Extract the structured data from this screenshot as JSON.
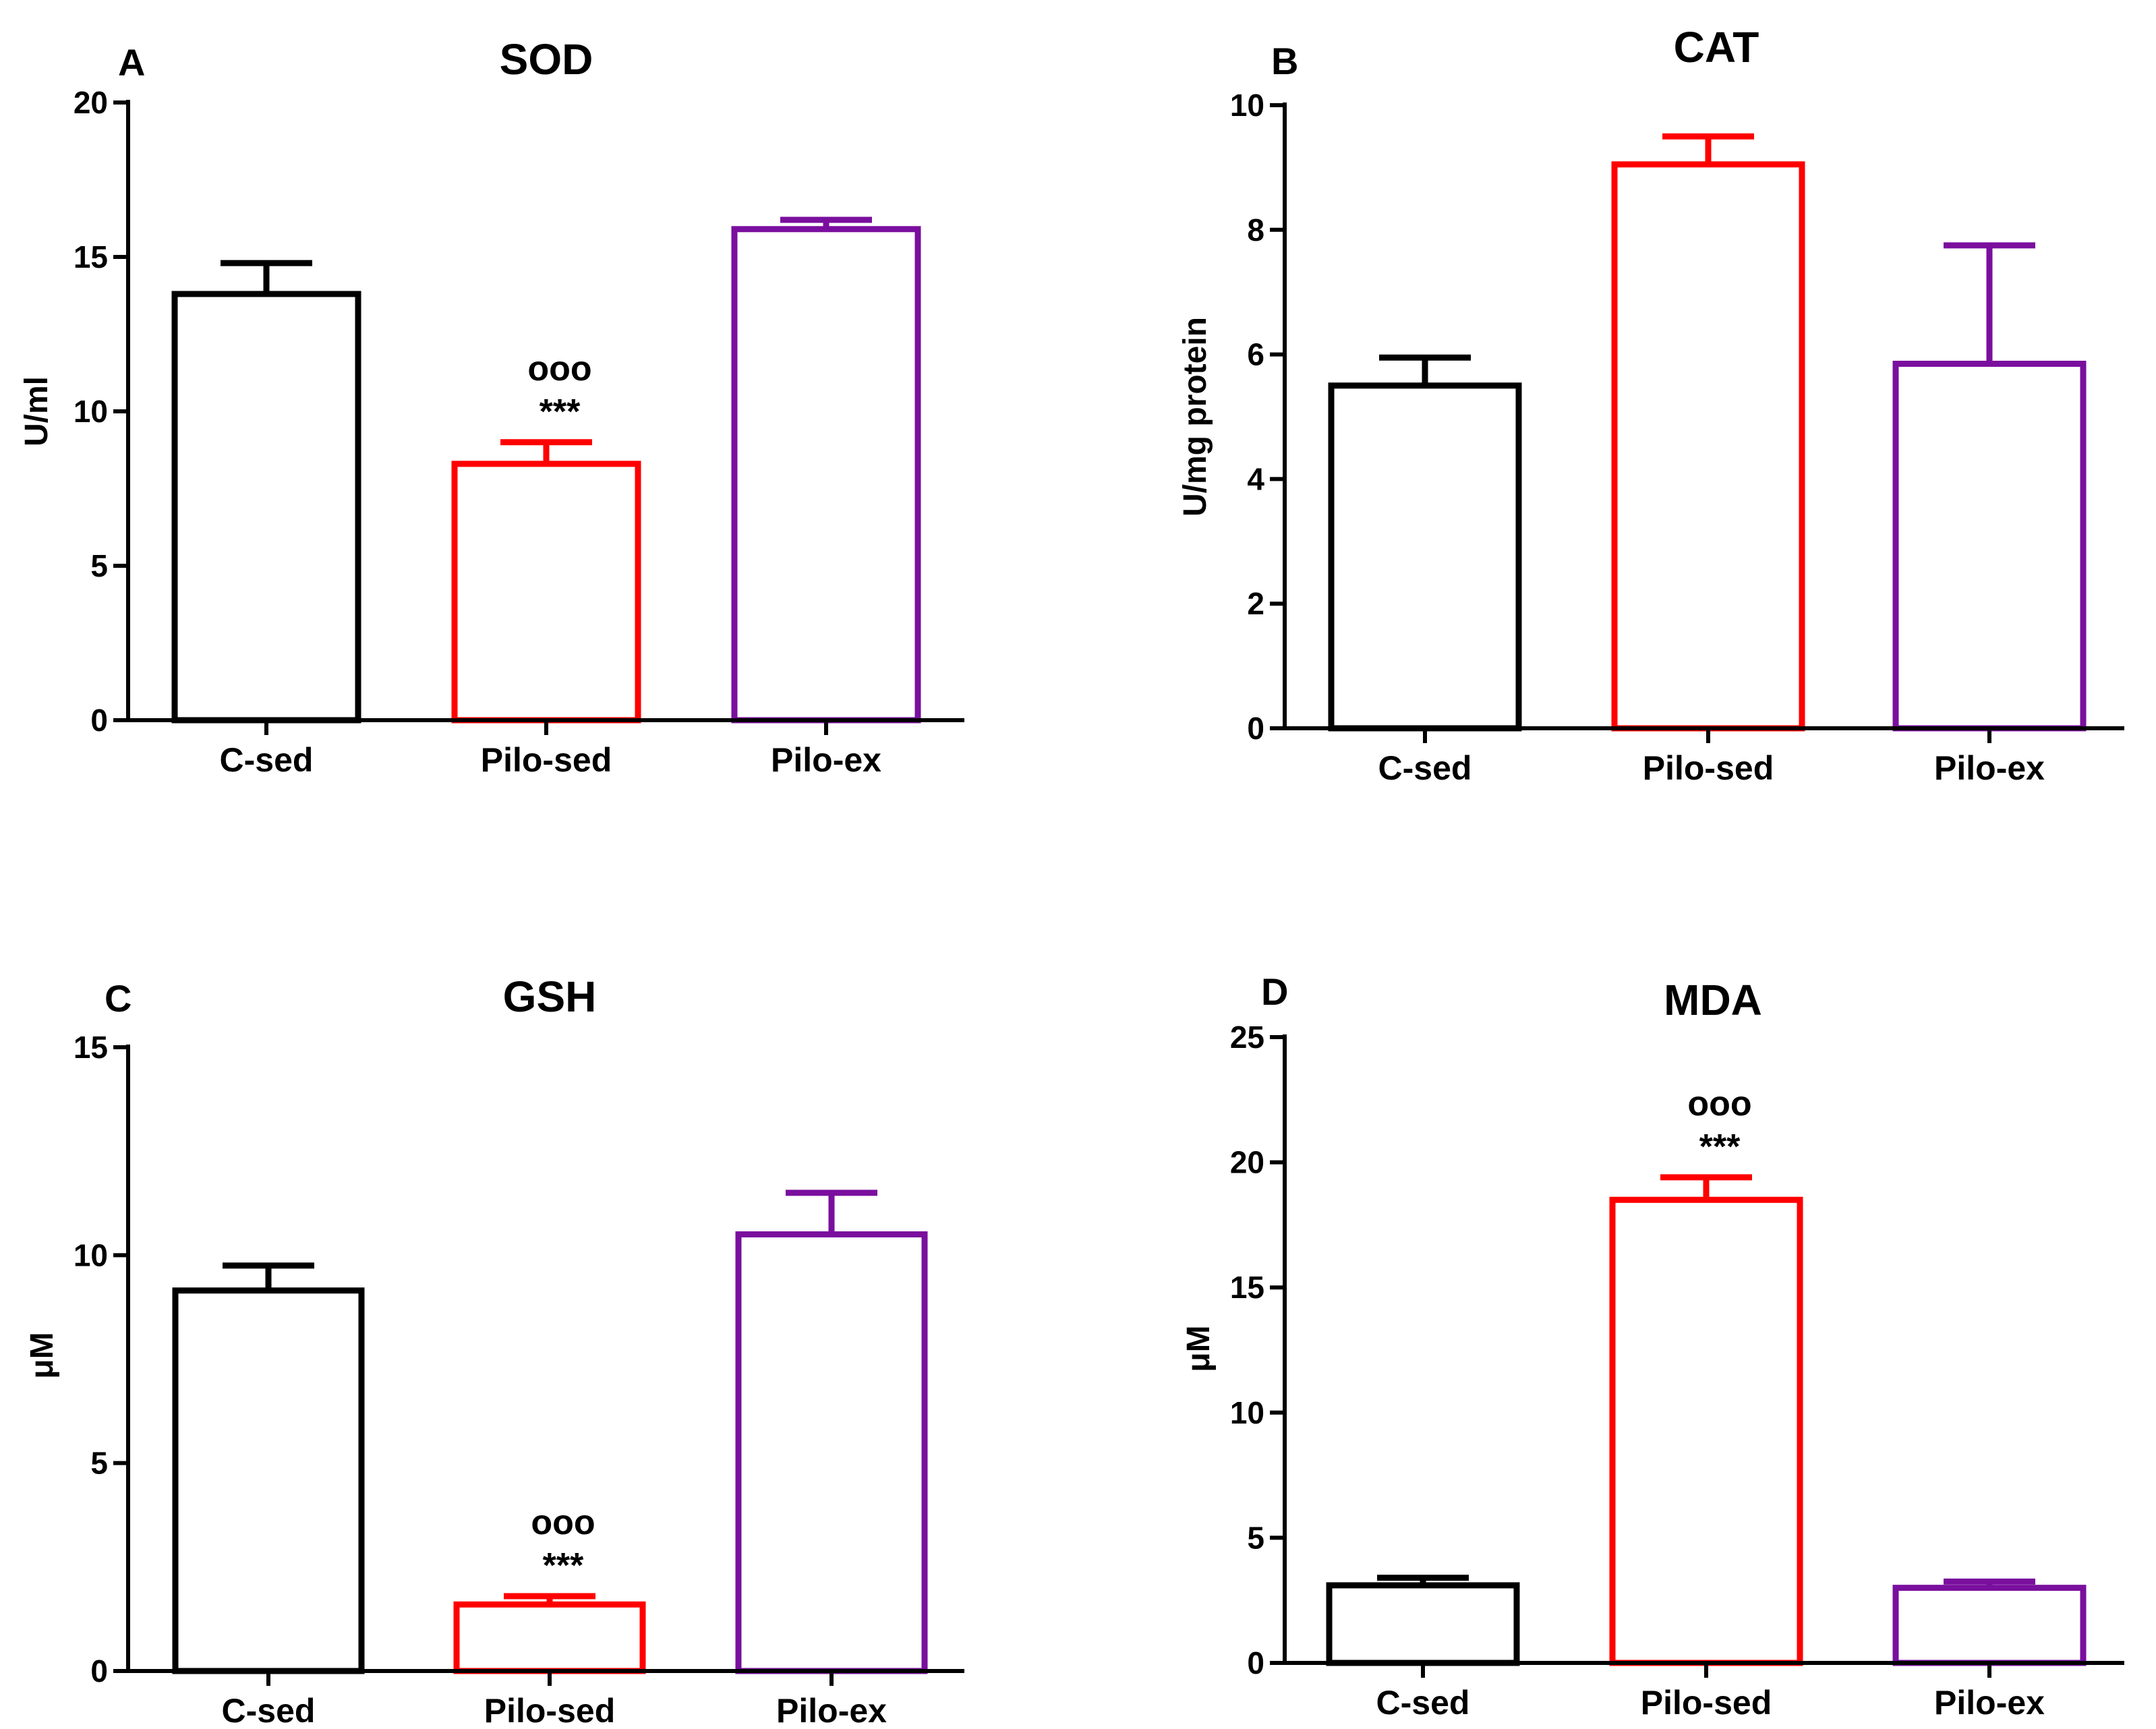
{
  "chart_data": [
    {
      "type": "bar",
      "panel": "A",
      "title": "SOD",
      "xlabel": "",
      "ylabel": "U/ml",
      "ylim": [
        0,
        20
      ],
      "yticks": [
        "0",
        "5",
        "10",
        "15",
        "20"
      ],
      "categories": [
        "C-sed",
        "Pilo-sed",
        "Pilo-ex"
      ],
      "values": [
        13.8,
        8.3,
        15.9
      ],
      "errors": [
        1.0,
        0.7,
        0.3
      ],
      "colors": [
        "#000000",
        "#ff0000",
        "#7a0f9e"
      ],
      "annotations": [
        {
          "category": "Pilo-sed",
          "lines": [
            "ooo",
            "***"
          ]
        }
      ]
    },
    {
      "type": "bar",
      "panel": "B",
      "title": "CAT",
      "xlabel": "",
      "ylabel": "U/mg protein",
      "ylim": [
        0,
        10
      ],
      "yticks": [
        "0",
        "2",
        "4",
        "6",
        "8",
        "10"
      ],
      "categories": [
        "C-sed",
        "Pilo-sed",
        "Pilo-ex"
      ],
      "values": [
        5.5,
        9.05,
        5.85
      ],
      "errors": [
        0.45,
        0.45,
        1.9
      ],
      "colors": [
        "#000000",
        "#ff0000",
        "#7a0f9e"
      ],
      "annotations": []
    },
    {
      "type": "bar",
      "panel": "C",
      "title": "GSH",
      "xlabel": "",
      "ylabel": "μM",
      "ylim": [
        0,
        15
      ],
      "yticks": [
        "0",
        "5",
        "10",
        "15"
      ],
      "categories": [
        "C-sed",
        "Pilo-sed",
        "Pilo-ex"
      ],
      "values": [
        9.15,
        1.6,
        10.5
      ],
      "errors": [
        0.6,
        0.2,
        1.0
      ],
      "colors": [
        "#000000",
        "#ff0000",
        "#7a0f9e"
      ],
      "annotations": [
        {
          "category": "Pilo-sed",
          "lines": [
            "ooo",
            "***"
          ]
        }
      ]
    },
    {
      "type": "bar",
      "panel": "D",
      "title": "MDA",
      "xlabel": "",
      "ylabel": "μM",
      "ylim": [
        0,
        25
      ],
      "yticks": [
        "0",
        "5",
        "10",
        "15",
        "20",
        "25"
      ],
      "categories": [
        "C-sed",
        "Pilo-sed",
        "Pilo-ex"
      ],
      "values": [
        3.1,
        18.5,
        3.0
      ],
      "errors": [
        0.3,
        0.9,
        0.25
      ],
      "colors": [
        "#000000",
        "#ff0000",
        "#7a0f9e"
      ],
      "annotations": [
        {
          "category": "Pilo-sed",
          "lines": [
            "ooo",
            "***"
          ]
        }
      ]
    }
  ]
}
